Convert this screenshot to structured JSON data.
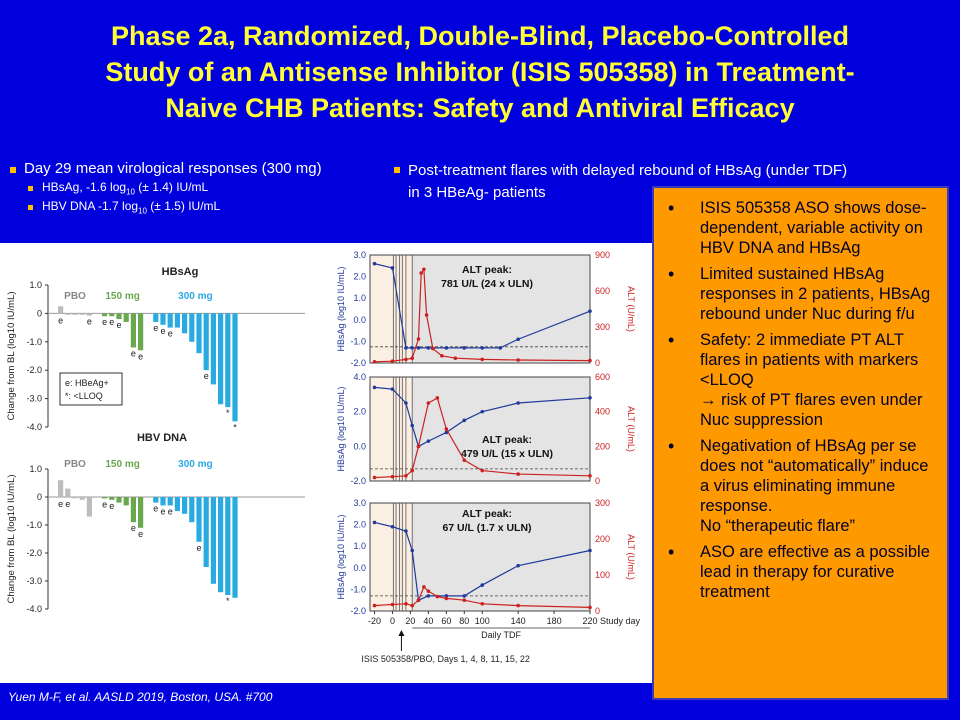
{
  "title": {
    "line1": "Phase 2a, Randomized, Double-Blind, Placebo-Controlled",
    "line2": "Study of an Antisense Inhibitor (ISIS 505358) in Treatment-",
    "line3": "Naive CHB Patients: Safety and Antiviral Efficacy"
  },
  "left_bullets": {
    "main": "Day 29 mean virological responses (300 mg)",
    "sub1_a": "HBsAg, -1.6 log",
    "sub1_sub": "10",
    "sub1_b": " (± 1.4) IU/mL",
    "sub2_a": "HBV DNA -1.7 log",
    "sub2_sub": "10",
    "sub2_b": " (± 1.5) IU/mL"
  },
  "right_bullet": {
    "line1": "Post-treatment flares with delayed rebound of HBsAg (under TDF)",
    "line2": "in 3 HBeAg- patients"
  },
  "orange_box": {
    "items": [
      "ISIS 505358 ASO shows dose-dependent, variable activity on HBV DNA and HBsAg",
      "Limited sustained HBsAg responses in 2 patients, HBsAg rebound under Nuc during f/u",
      "Safety: 2 immediate PT ALT flares in patients with markers <LLOQ",
      "→ risk of PT flares even under Nuc suppression",
      "Negativation of HBsAg per se does not “automatically” induce a virus eliminating immune response.",
      "No “therapeutic flare”",
      "ASO are effective as a possible lead in therapy for curative treatment"
    ]
  },
  "footer": "Yuen M-F,  et al. AASLD 2019, Boston, USA. #700",
  "colors": {
    "pbo": "#bdbdbd",
    "mg150": "#6aa84f",
    "mg300": "#29abe2",
    "hbsag": "#1f3a9a",
    "alt": "#cc2020"
  },
  "chart_data": [
    {
      "type": "bar",
      "title": "HBsAg",
      "ylabel": "Change from BL (log10 IU/mL)",
      "ylim": [
        -4.0,
        1.0
      ],
      "yticks": [
        "1.0",
        "0",
        "-1.0",
        "-2.0",
        "-3.0",
        "-4.0"
      ],
      "group_labels": [
        "PBO",
        "150 mg",
        "300 mg"
      ],
      "legend": [
        "e: HBeAg+",
        "*: <LLOQ"
      ],
      "series": [
        {
          "name": "PBO",
          "values": [
            0.25,
            -0.05,
            -0.05,
            -0.05,
            -0.08
          ],
          "labels": [
            "e",
            "",
            "",
            "",
            "e"
          ]
        },
        {
          "name": "150 mg",
          "values": [
            -0.1,
            -0.1,
            -0.2,
            -0.3,
            -1.2,
            -1.3
          ],
          "labels": [
            "e",
            "e",
            "e",
            "",
            "e",
            "e"
          ]
        },
        {
          "name": "300 mg",
          "values": [
            -0.3,
            -0.4,
            -0.5,
            -0.5,
            -0.7,
            -1.0,
            -1.4,
            -2.0,
            -2.5,
            -3.2,
            -3.3,
            -3.8
          ],
          "labels": [
            "e",
            "e",
            "e",
            "",
            "",
            "",
            "",
            "e",
            "",
            "",
            "*",
            "*"
          ]
        }
      ]
    },
    {
      "type": "bar",
      "title": "HBV DNA",
      "ylabel": "Change from BL (log10 IU/mL)",
      "ylim": [
        -4.0,
        1.0
      ],
      "yticks": [
        "1.0",
        "0",
        "-1.0",
        "-2.0",
        "-3.0",
        "-4.0"
      ],
      "group_labels": [
        "PBO",
        "150 mg",
        "300 mg"
      ],
      "series": [
        {
          "name": "PBO",
          "values": [
            0.6,
            0.3,
            -0.05,
            -0.1,
            -0.7
          ],
          "labels": [
            "e",
            "e",
            "",
            "",
            ""
          ]
        },
        {
          "name": "150 mg",
          "values": [
            -0.05,
            -0.1,
            -0.2,
            -0.3,
            -0.9,
            -1.1
          ],
          "labels": [
            "e",
            "e",
            "",
            "",
            "e",
            "e"
          ]
        },
        {
          "name": "300 mg",
          "values": [
            -0.2,
            -0.3,
            -0.3,
            -0.5,
            -0.6,
            -0.9,
            -1.6,
            -2.5,
            -3.1,
            -3.4,
            -3.5,
            -3.6
          ],
          "labels": [
            "e",
            "e",
            "e",
            "",
            "",
            "",
            "e",
            "",
            "",
            "",
            "*",
            ""
          ]
        }
      ]
    },
    {
      "type": "line",
      "title": "",
      "ylabel_left": "HBsAg (log10 IU/mL)",
      "ylabel_right": "ALT (U/mL)",
      "xlabel": "Study day",
      "y_left_lim": [
        -2.0,
        3.0
      ],
      "y_left_ticks": [
        "3.0",
        "2.0",
        "1.0",
        "0.0",
        "-1.0",
        "-2.0"
      ],
      "y_right_lim": [
        0,
        900
      ],
      "y_right_ticks": [
        "900",
        "600",
        "300",
        "0"
      ],
      "annotation_line1": "ALT peak:",
      "annotation_line2": "781 U/L (24 x ULN)",
      "series": [
        {
          "name": "HBsAg",
          "x": [
            -20,
            0,
            15,
            22,
            29,
            40,
            60,
            80,
            100,
            120,
            140,
            220
          ],
          "y": [
            2.6,
            2.4,
            -1.3,
            -1.3,
            -1.3,
            -1.3,
            -1.3,
            -1.3,
            -1.3,
            -1.3,
            -0.9,
            0.4
          ]
        },
        {
          "name": "ALT",
          "x": [
            -20,
            0,
            15,
            22,
            29,
            32,
            35,
            38,
            45,
            55,
            70,
            100,
            140,
            220
          ],
          "y": [
            10,
            15,
            30,
            40,
            200,
            750,
            781,
            400,
            120,
            60,
            40,
            30,
            25,
            20
          ]
        }
      ]
    },
    {
      "type": "line",
      "title": "",
      "ylabel_left": "HBsAg (log10 IU/mL)",
      "ylabel_right": "ALT (U/mL)",
      "y_left_lim": [
        -2.0,
        4.0
      ],
      "y_left_ticks": [
        "4.0",
        "2.0",
        "0.0",
        "-2.0"
      ],
      "y_right_lim": [
        0,
        600
      ],
      "y_right_ticks": [
        "600",
        "400",
        "200",
        "0"
      ],
      "annotation_line1": "ALT peak:",
      "annotation_line2": "479 U/L (15 x ULN)",
      "series": [
        {
          "name": "HBsAg",
          "x": [
            -20,
            0,
            15,
            22,
            29,
            40,
            60,
            80,
            100,
            140,
            220
          ],
          "y": [
            3.4,
            3.3,
            2.5,
            1.2,
            0.0,
            0.3,
            0.8,
            1.5,
            2.0,
            2.5,
            2.8
          ]
        },
        {
          "name": "ALT",
          "x": [
            -20,
            0,
            15,
            22,
            29,
            40,
            50,
            60,
            80,
            100,
            140,
            220
          ],
          "y": [
            20,
            25,
            30,
            60,
            200,
            450,
            479,
            300,
            120,
            60,
            40,
            30
          ]
        }
      ]
    },
    {
      "type": "line",
      "title": "",
      "ylabel_left": "HBsAg (log10 IU/mL)",
      "ylabel_right": "ALT (U/mL)",
      "xlabel": "Study day",
      "x_subtitle": "Daily TDF",
      "y_left_lim": [
        -2.0,
        3.0
      ],
      "y_left_ticks": [
        "3.0",
        "2.0",
        "1.0",
        "0.0",
        "-1.0",
        "-2.0"
      ],
      "y_right_lim": [
        0,
        300
      ],
      "y_right_ticks": [
        "300",
        "200",
        "100",
        "0"
      ],
      "x_ticks": [
        "-20",
        "0",
        "20",
        "40",
        "60",
        "80",
        "100",
        "140",
        "180",
        "220"
      ],
      "annotation_line1": "ALT peak:",
      "annotation_line2": "67 U/L (1.7 x ULN)",
      "dosing_note": "ISIS 505358/PBO, Days 1, 4, 8, 11, 15, 22",
      "series": [
        {
          "name": "HBsAg",
          "x": [
            -20,
            0,
            15,
            22,
            29,
            40,
            60,
            80,
            100,
            140,
            220
          ],
          "y": [
            2.1,
            1.9,
            1.7,
            0.8,
            -1.5,
            -1.3,
            -1.3,
            -1.3,
            -0.8,
            0.1,
            0.8
          ]
        },
        {
          "name": "ALT",
          "x": [
            -20,
            0,
            15,
            22,
            29,
            35,
            40,
            50,
            60,
            80,
            100,
            140,
            220
          ],
          "y": [
            15,
            18,
            20,
            15,
            30,
            67,
            55,
            40,
            35,
            30,
            20,
            15,
            10
          ]
        }
      ]
    }
  ]
}
